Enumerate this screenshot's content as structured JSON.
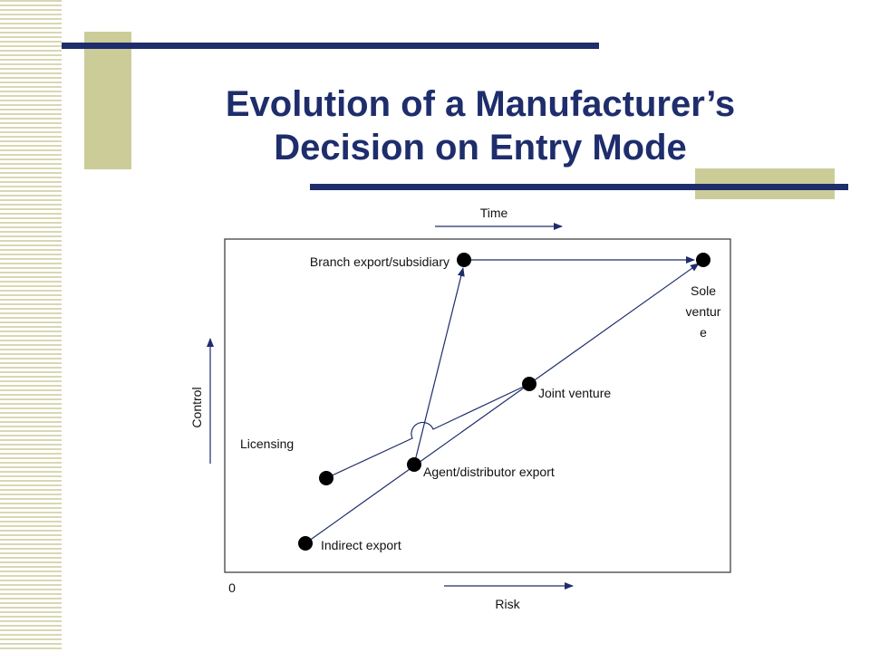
{
  "header": {
    "title": [
      "Evolution of a Manufacturer’s",
      "Decision on Entry Mode"
    ]
  },
  "diagram": {
    "axes": {
      "top": "Time",
      "left": "Control",
      "bottom": "Risk",
      "origin": "0"
    },
    "nodes": [
      {
        "label": [
          "Branch export/subsidiary"
        ]
      },
      {
        "label": [
          "Sole",
          "ventur",
          "e"
        ]
      },
      {
        "label": [
          "Joint venture"
        ]
      },
      {
        "label": [
          "Agent/distributor export"
        ]
      },
      {
        "label": [
          "Licensing"
        ]
      },
      {
        "label": [
          "Indirect export"
        ]
      }
    ]
  }
}
